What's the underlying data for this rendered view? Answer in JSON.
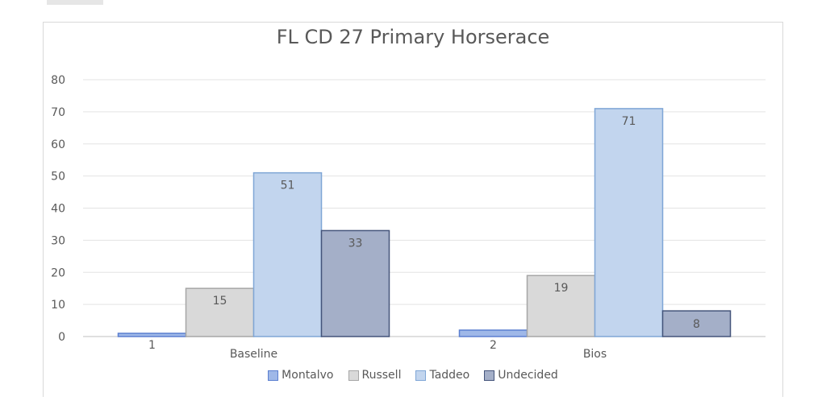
{
  "chart_data": {
    "type": "bar",
    "title": "FL CD 27 Primary Horserace",
    "categories": [
      "Baseline",
      "Bios"
    ],
    "series": [
      {
        "name": "Montalvo",
        "values": [
          1,
          2
        ],
        "color": "#9fb8e8",
        "stroke": "#5b7fd0"
      },
      {
        "name": "Russell",
        "values": [
          15,
          19
        ],
        "color": "#d9d9d9",
        "stroke": "#a6a6a6"
      },
      {
        "name": "Taddeo",
        "values": [
          51,
          71
        ],
        "color": "#c2d5ee",
        "stroke": "#7fa6d6"
      },
      {
        "name": "Undecided",
        "values": [
          33,
          8
        ],
        "color": "#a4afc8",
        "stroke": "#44547a"
      }
    ],
    "ylim": [
      0,
      80
    ],
    "yticks": [
      0,
      10,
      20,
      30,
      40,
      50,
      60,
      70,
      80
    ],
    "grid": true,
    "legend": "bottom"
  }
}
